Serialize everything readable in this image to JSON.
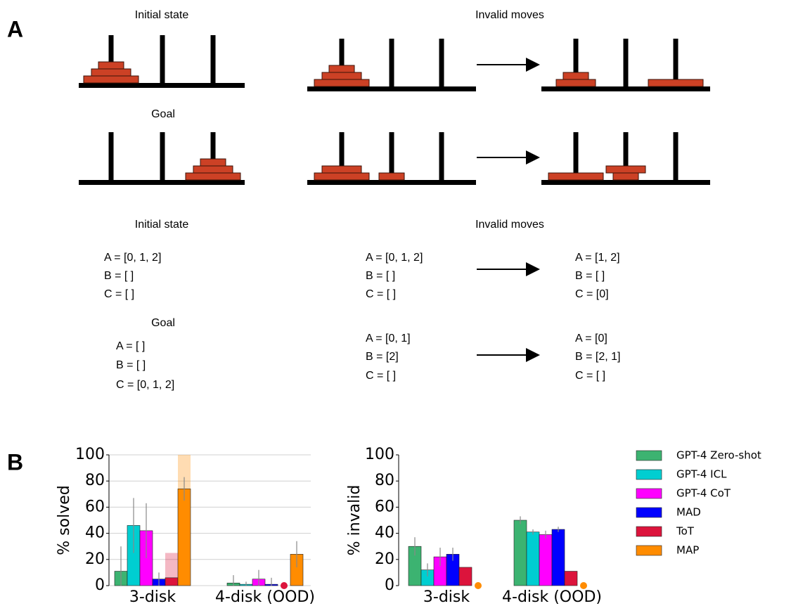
{
  "panel_a": {
    "label": "A",
    "pictorial": {
      "initial_title": "Initial state",
      "goal_title": "Goal",
      "invalid_title": "Invalid moves"
    },
    "textual": {
      "initial_title": "Initial state",
      "initial": [
        "A = [0, 1, 2]",
        "B = [ ]",
        "C = [ ]"
      ],
      "goal_title": "Goal",
      "goal": [
        "A = [ ]",
        "B = [ ]",
        "C = [0, 1, 2]"
      ],
      "invalid_title": "Invalid moves",
      "invalid": [
        {
          "before": [
            "A = [0, 1, 2]",
            "B = [ ]",
            "C = [ ]"
          ],
          "after": [
            "A = [1, 2]",
            "B = [ ]",
            "C = [0]"
          ]
        },
        {
          "before": [
            "A = [0, 1]",
            "B = [2]",
            "C = [ ]"
          ],
          "after": [
            "A = [0]",
            "B = [2, 1]",
            "C = [ ]"
          ]
        }
      ]
    }
  },
  "panel_b_label": "B",
  "chart_data": [
    {
      "type": "bar",
      "y_label": "% solved",
      "categories": [
        "3-disk",
        "4-disk (OOD)"
      ],
      "ylim": [
        0,
        100
      ],
      "yticks": [
        0,
        20,
        40,
        60,
        80,
        100
      ],
      "grid": true,
      "series": [
        {
          "values": [
            11,
            2
          ],
          "errors": [
            19,
            6
          ]
        },
        {
          "values": [
            46,
            1
          ],
          "errors": [
            21,
            2
          ]
        },
        {
          "values": [
            42,
            5
          ],
          "errors": [
            21,
            7
          ]
        },
        {
          "values": [
            5,
            1
          ],
          "errors": [
            5,
            5
          ]
        },
        {
          "values": [
            6,
            0
          ],
          "errors": [
            0,
            0
          ],
          "shade": [
            25,
            null
          ]
        },
        {
          "values": [
            74,
            24
          ],
          "errors": [
            9,
            10
          ],
          "shade": [
            100,
            null
          ]
        }
      ]
    },
    {
      "type": "bar",
      "y_label": "% invalid",
      "categories": [
        "3-disk",
        "4-disk (OOD)"
      ],
      "ylim": [
        0,
        100
      ],
      "yticks": [
        0,
        20,
        40,
        60,
        80,
        100
      ],
      "grid": false,
      "series": [
        {
          "name": "GPT-4 Zero-shot",
          "color": "#3cb371",
          "values": [
            30,
            50
          ],
          "errors": [
            7,
            3
          ]
        },
        {
          "name": "GPT-4 ICL",
          "color": "#00ced1",
          "values": [
            12,
            41
          ],
          "errors": [
            5,
            2
          ]
        },
        {
          "name": "GPT-4 CoT",
          "color": "#ff00ff",
          "values": [
            22,
            39
          ],
          "errors": [
            7,
            3
          ]
        },
        {
          "name": "MAD",
          "color": "#0000ff",
          "values": [
            24,
            43
          ],
          "errors": [
            5,
            2
          ]
        },
        {
          "name": "ToT",
          "color": "#dc143c",
          "values": [
            14,
            11
          ],
          "errors": [
            0,
            0
          ]
        },
        {
          "name": "MAP",
          "color": "#ff8c00",
          "values": [
            0,
            0
          ],
          "errors": [
            0,
            0
          ]
        }
      ]
    }
  ]
}
